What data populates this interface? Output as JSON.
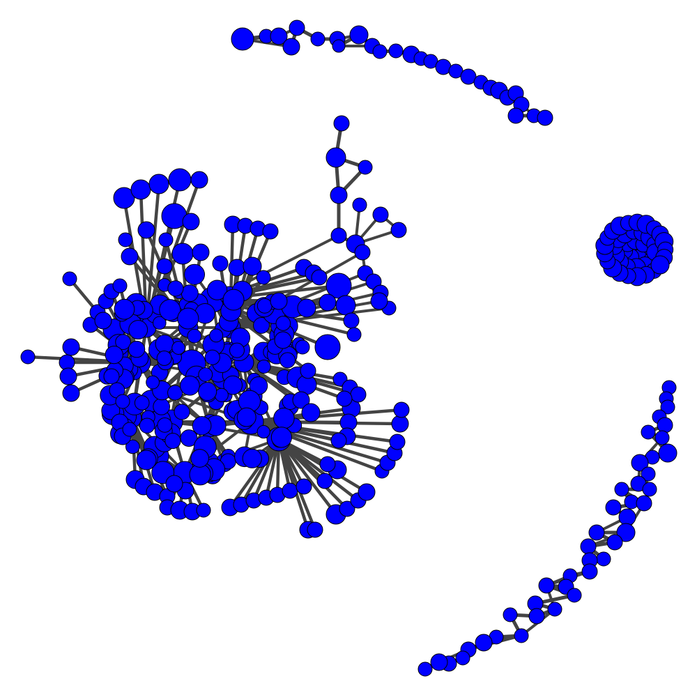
{
  "graph": {
    "node_fill": "#0000ff",
    "node_stroke": "#000000",
    "edge_color": "#444444",
    "components": [
      "hub-cluster",
      "top-arc-chain",
      "dense-ball-cluster",
      "lower-right-arc-chain"
    ]
  }
}
